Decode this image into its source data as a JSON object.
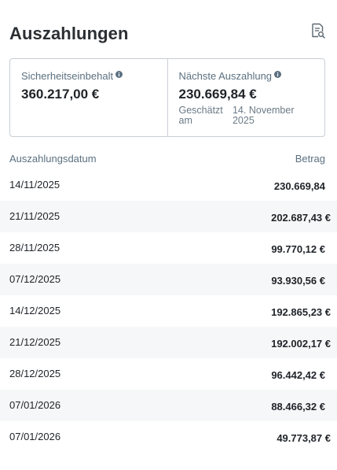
{
  "header": {
    "title": "Auszahlungen",
    "report_icon": "document-search-icon"
  },
  "cards": [
    {
      "label": "Sicherheitseinbehalt",
      "value": "360.217,00 €",
      "info_icon": "info-icon"
    },
    {
      "label": "Nächste Auszahlung",
      "value": "230.669,84 €",
      "info_icon": "info-icon",
      "estimate_label": "Geschätzt am",
      "estimate_date": "14. November 2025"
    }
  ],
  "table": {
    "columns": [
      "Auszahlungsdatum",
      "Betrag"
    ],
    "rows": [
      {
        "date": "14/11/2025",
        "amount": "230.669,84"
      },
      {
        "date": "21/11/2025",
        "amount": "202.687,43 €"
      },
      {
        "date": "28/11/2025",
        "amount": "99.770,12 €"
      },
      {
        "date": "07/12/2025",
        "amount": "93.930,56 €"
      },
      {
        "date": "14/12/2025",
        "amount": "192.865,23 €"
      },
      {
        "date": "21/12/2025",
        "amount": "192.002,17 €"
      },
      {
        "date": "28/12/2025",
        "amount": "96.442,42 €"
      },
      {
        "date": "07/01/2026",
        "amount": "88.466,32 €"
      },
      {
        "date": "07/01/2026",
        "amount": "49.773,87 €"
      }
    ]
  }
}
